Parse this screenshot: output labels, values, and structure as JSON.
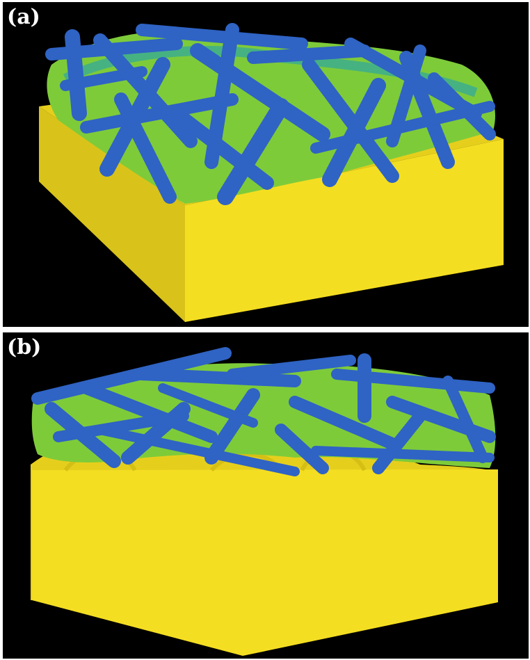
{
  "panels": [
    {
      "label": "(a)"
    },
    {
      "label": "(b)"
    }
  ],
  "colors": {
    "background": "#000000",
    "substrate": "#f2dd1f",
    "substrate_shade": "#d6bf14",
    "fiber": "#2f63c4",
    "fiber_highlight": "#4d84e0",
    "matrix": "#7ecb3a",
    "matrix_edge": "#2fa6a0"
  }
}
